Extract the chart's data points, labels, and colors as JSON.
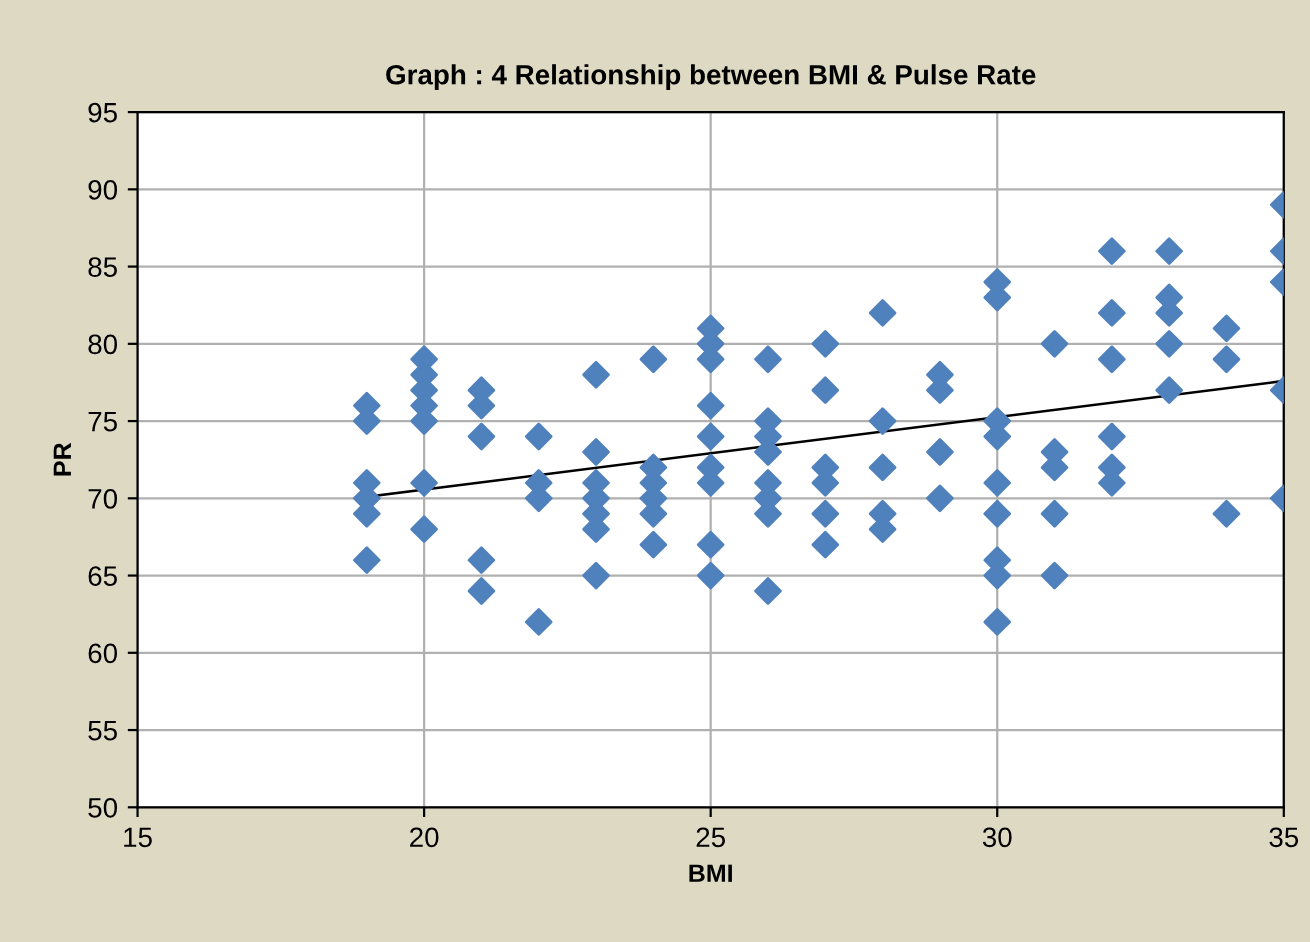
{
  "chart_data": {
    "type": "scatter",
    "title": "Graph : 4 Relationship between BMI & Pulse Rate",
    "xlabel": "BMI",
    "ylabel": "PR",
    "xlim": [
      15,
      35
    ],
    "xticks": [
      15,
      20,
      25,
      30,
      35
    ],
    "ylim": [
      50,
      95
    ],
    "yticks": [
      50,
      55,
      60,
      65,
      70,
      75,
      80,
      85,
      90,
      95
    ],
    "grid": true,
    "legend": false,
    "marker": "diamond",
    "series": [
      {
        "color": "#4f81bd",
        "x": [
          19,
          19,
          19,
          19,
          19,
          19,
          20,
          20,
          20,
          20,
          20,
          20,
          20,
          21,
          21,
          21,
          21,
          21,
          22,
          22,
          22,
          22,
          23,
          23,
          23,
          23,
          23,
          23,
          23,
          24,
          24,
          24,
          24,
          24,
          24,
          25,
          25,
          25,
          25,
          25,
          25,
          25,
          25,
          25,
          26,
          26,
          26,
          26,
          26,
          26,
          26,
          26,
          27,
          27,
          27,
          27,
          27,
          27,
          28,
          28,
          28,
          28,
          28,
          29,
          29,
          29,
          29,
          30,
          30,
          30,
          30,
          30,
          30,
          30,
          30,
          30,
          31,
          31,
          31,
          31,
          31,
          32,
          32,
          32,
          32,
          32,
          32,
          33,
          33,
          33,
          33,
          33,
          34,
          34,
          34,
          35,
          35,
          35,
          35,
          35
        ],
        "values": [
          76,
          75,
          71,
          70,
          69,
          66,
          79,
          78,
          77,
          76,
          75,
          71,
          68,
          77,
          76,
          74,
          66,
          64,
          74,
          71,
          70,
          62,
          78,
          73,
          71,
          70,
          69,
          68,
          65,
          79,
          72,
          71,
          70,
          69,
          67,
          81,
          80,
          79,
          76,
          74,
          72,
          71,
          67,
          65,
          79,
          75,
          74,
          73,
          71,
          70,
          69,
          64,
          80,
          77,
          72,
          71,
          69,
          67,
          82,
          75,
          72,
          69,
          68,
          78,
          77,
          73,
          70,
          84,
          83,
          75,
          74,
          71,
          69,
          66,
          65,
          62,
          80,
          73,
          72,
          69,
          65,
          86,
          82,
          79,
          74,
          72,
          71,
          86,
          83,
          82,
          80,
          77,
          81,
          79,
          69,
          89,
          86,
          84,
          77,
          70
        ]
      },
      {
        "type": "line",
        "color": "#000000",
        "marker": "none",
        "x": [
          19,
          35
        ],
        "values": [
          70.1,
          77.6
        ]
      }
    ]
  }
}
